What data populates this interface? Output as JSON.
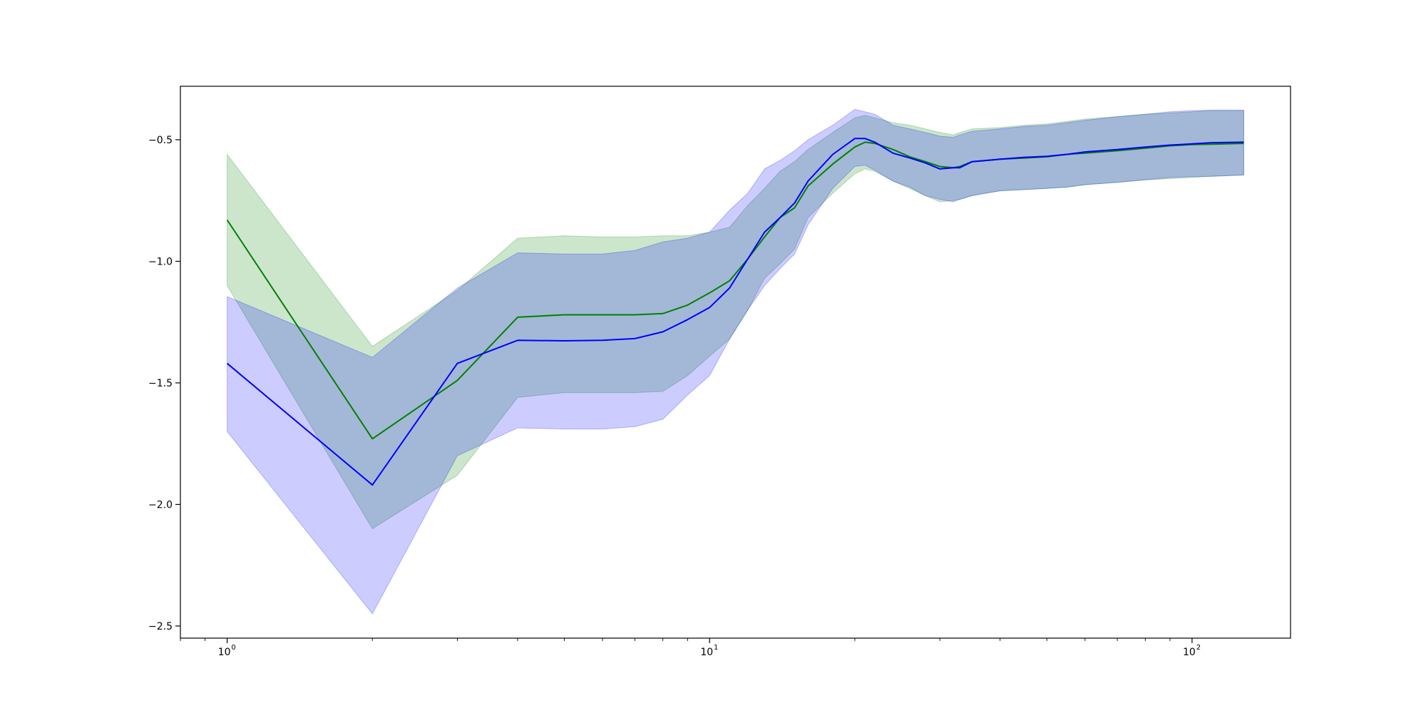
{
  "chart_data": {
    "type": "line",
    "title": "",
    "xlabel": "",
    "ylabel": "",
    "xscale": "log",
    "xlim": [
      0.8,
      160
    ],
    "ylim": [
      -2.55,
      -0.28
    ],
    "grid": false,
    "x_ticks": [
      {
        "base": "10",
        "exp": "0",
        "value": 1
      },
      {
        "base": "10",
        "exp": "1",
        "value": 10
      },
      {
        "base": "10",
        "exp": "2",
        "value": 100
      }
    ],
    "y_ticks": [
      {
        "label": "−0.5",
        "value": -0.5
      },
      {
        "label": "−1.0",
        "value": -1.0
      },
      {
        "label": "−1.5",
        "value": -1.5
      },
      {
        "label": "−2.0",
        "value": -2.0
      },
      {
        "label": "−2.5",
        "value": -2.5
      }
    ],
    "series": [
      {
        "color": "#008000",
        "band_color": "#008000",
        "band_opacity": 0.2,
        "x": [
          1,
          2,
          3,
          4,
          5,
          6,
          7,
          8,
          9,
          10,
          11,
          12,
          13,
          14,
          15,
          16,
          18,
          20,
          21,
          22,
          24,
          26,
          28,
          30,
          32,
          33,
          35,
          40,
          45,
          50,
          55,
          60,
          70,
          80,
          90,
          100,
          110,
          128
        ],
        "mean": [
          -0.83,
          -1.73,
          -1.49,
          -1.23,
          -1.22,
          -1.22,
          -1.22,
          -1.215,
          -1.18,
          -1.13,
          -1.08,
          -0.99,
          -0.9,
          -0.82,
          -0.78,
          -0.69,
          -0.6,
          -0.53,
          -0.51,
          -0.515,
          -0.54,
          -0.57,
          -0.59,
          -0.61,
          -0.615,
          -0.61,
          -0.59,
          -0.58,
          -0.575,
          -0.57,
          -0.56,
          -0.555,
          -0.545,
          -0.535,
          -0.525,
          -0.52,
          -0.518,
          -0.515
        ],
        "upper": [
          -0.56,
          -1.35,
          -1.12,
          -0.905,
          -0.895,
          -0.9,
          -0.9,
          -0.895,
          -0.895,
          -0.88,
          -0.86,
          -0.77,
          -0.7,
          -0.63,
          -0.59,
          -0.54,
          -0.47,
          -0.41,
          -0.4,
          -0.41,
          -0.43,
          -0.44,
          -0.455,
          -0.47,
          -0.48,
          -0.47,
          -0.455,
          -0.45,
          -0.44,
          -0.435,
          -0.425,
          -0.415,
          -0.405,
          -0.395,
          -0.39,
          -0.385,
          -0.38,
          -0.38
        ],
        "lower": [
          -1.1,
          -2.1,
          -1.88,
          -1.56,
          -1.54,
          -1.54,
          -1.54,
          -1.535,
          -1.47,
          -1.39,
          -1.32,
          -1.2,
          -1.07,
          -1.01,
          -0.95,
          -0.82,
          -0.72,
          -0.64,
          -0.62,
          -0.63,
          -0.67,
          -0.7,
          -0.73,
          -0.755,
          -0.75,
          -0.745,
          -0.73,
          -0.71,
          -0.705,
          -0.7,
          -0.695,
          -0.685,
          -0.675,
          -0.665,
          -0.66,
          -0.655,
          -0.65,
          -0.645
        ]
      },
      {
        "color": "#0000ff",
        "band_color": "#0000ff",
        "band_opacity": 0.2,
        "x": [
          1,
          2,
          3,
          4,
          5,
          6,
          7,
          8,
          9,
          10,
          11,
          12,
          13,
          14,
          15,
          16,
          18,
          20,
          21,
          22,
          24,
          26,
          28,
          30,
          32,
          33,
          35,
          40,
          45,
          50,
          55,
          60,
          70,
          80,
          90,
          100,
          110,
          128
        ],
        "mean": [
          -1.42,
          -1.92,
          -1.42,
          -1.325,
          -1.327,
          -1.325,
          -1.318,
          -1.29,
          -1.24,
          -1.19,
          -1.11,
          -0.99,
          -0.88,
          -0.82,
          -0.76,
          -0.67,
          -0.56,
          -0.495,
          -0.495,
          -0.51,
          -0.555,
          -0.575,
          -0.595,
          -0.62,
          -0.615,
          -0.615,
          -0.59,
          -0.58,
          -0.572,
          -0.568,
          -0.56,
          -0.55,
          -0.54,
          -0.53,
          -0.522,
          -0.517,
          -0.512,
          -0.51
        ],
        "upper": [
          -1.145,
          -1.395,
          -1.11,
          -0.965,
          -0.97,
          -0.97,
          -0.955,
          -0.92,
          -0.905,
          -0.88,
          -0.79,
          -0.72,
          -0.62,
          -0.585,
          -0.545,
          -0.5,
          -0.44,
          -0.375,
          -0.385,
          -0.395,
          -0.44,
          -0.455,
          -0.47,
          -0.485,
          -0.49,
          -0.48,
          -0.465,
          -0.455,
          -0.445,
          -0.44,
          -0.43,
          -0.42,
          -0.405,
          -0.395,
          -0.385,
          -0.38,
          -0.378,
          -0.378
        ],
        "lower": [
          -1.7,
          -2.45,
          -1.8,
          -1.685,
          -1.69,
          -1.69,
          -1.68,
          -1.65,
          -1.55,
          -1.47,
          -1.32,
          -1.2,
          -1.1,
          -1.03,
          -0.97,
          -0.85,
          -0.7,
          -0.61,
          -0.605,
          -0.625,
          -0.67,
          -0.695,
          -0.73,
          -0.745,
          -0.755,
          -0.745,
          -0.73,
          -0.71,
          -0.705,
          -0.7,
          -0.695,
          -0.685,
          -0.675,
          -0.665,
          -0.655,
          -0.652,
          -0.65,
          -0.645
        ]
      }
    ]
  }
}
